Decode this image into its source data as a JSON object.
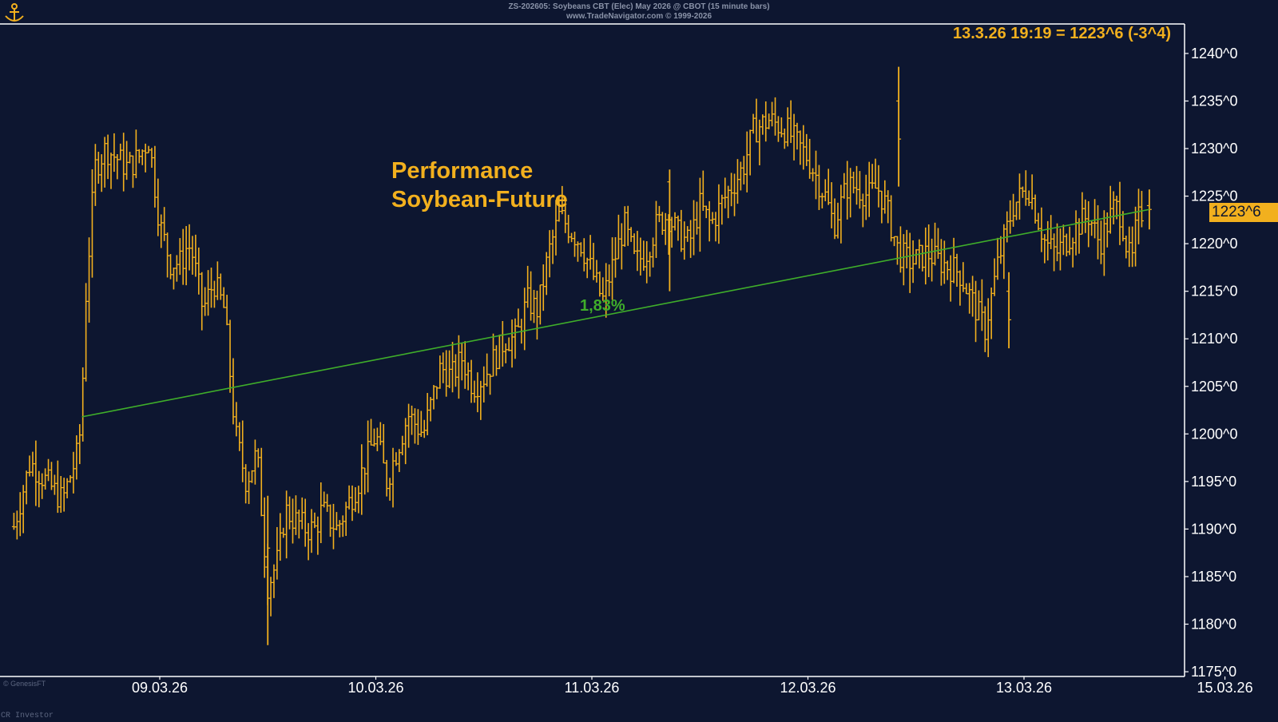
{
  "header": {
    "line1": "ZS-202605: Soybeans CBT (Elec) May 2026 @ CBOT (15 minute bars)",
    "line2": "www.TradeNavigator.com © 1999-2026"
  },
  "readout": "13.3.26 19:19 = 1223^6 (-3^4)",
  "annotation": {
    "title_line1": "Performance",
    "title_line2": "Soybean-Future",
    "performance_label": "1,83%"
  },
  "last_price_label": "1223^6",
  "footer": {
    "copyright": "© GenesisFT",
    "watermark": "CR Investor"
  },
  "colors": {
    "background": "#0d1630",
    "bars": "#f2b01e",
    "trendline": "#3fae2a",
    "axis": "#ffffff",
    "text": "#ffffff"
  },
  "chart_data": {
    "type": "ohlc-bar",
    "title": "ZS-202605: Soybeans CBT (Elec) May 2026 @ CBOT (15 minute bars)",
    "interval": "15 minute bars",
    "x_ticks": [
      "09.03.26",
      "10.03.26",
      "11.03.26",
      "12.03.26",
      "13.03.26",
      "15.03.26"
    ],
    "y_ticks": [
      "1240^0",
      "1235^0",
      "1230^0",
      "1225^0",
      "1220^0",
      "1215^0",
      "1210^0",
      "1205^0",
      "1200^0",
      "1195^0",
      "1190^0",
      "1185^0",
      "1180^0",
      "1175^0"
    ],
    "y_tick_values": [
      1240,
      1235,
      1230,
      1225,
      1220,
      1215,
      1210,
      1205,
      1200,
      1195,
      1190,
      1185,
      1180,
      1175
    ],
    "ylim": [
      1174.5,
      1243.1
    ],
    "xlim_days": [
      -0.68,
      4.65
    ],
    "x_tick_days": [
      0,
      1,
      2,
      3,
      4,
      4.93
    ],
    "price_path_days": [
      -0.74,
      -0.7,
      -0.6,
      -0.45,
      -0.38,
      -0.36,
      -0.35,
      -0.3,
      -0.25,
      -0.15,
      -0.1,
      -0.05,
      0.0,
      0.05,
      0.1,
      0.13,
      0.15,
      0.2,
      0.25,
      0.3,
      0.35,
      0.4,
      0.45,
      0.5,
      0.55,
      0.58,
      0.62,
      0.68,
      0.72,
      0.75,
      0.82,
      0.88,
      0.92,
      1.0,
      1.05,
      1.15,
      1.22,
      1.3,
      1.35,
      1.4,
      1.45,
      1.5,
      1.55,
      1.6,
      1.65,
      1.7,
      1.75,
      1.8,
      1.85,
      1.95,
      2.05,
      2.15,
      2.2,
      2.25,
      2.3,
      2.35,
      2.4,
      2.45,
      2.5,
      2.55,
      2.62,
      2.7,
      2.75,
      2.82,
      2.9,
      3.0,
      3.08,
      3.12,
      3.18,
      3.22,
      3.28,
      3.32,
      3.36,
      3.42,
      3.48,
      3.55,
      3.62,
      3.7,
      3.78,
      3.82,
      3.88,
      3.95,
      4.02,
      4.1,
      4.15,
      4.25,
      4.3,
      4.35,
      4.42,
      4.45,
      4.48,
      4.5,
      4.52,
      4.55
    ],
    "price_path_values": [
      1190,
      1188,
      1197,
      1193,
      1198,
      1202,
      1212,
      1228,
      1230,
      1228,
      1229,
      1231,
      1222,
      1218,
      1218,
      1220,
      1219,
      1213,
      1216,
      1213,
      1200,
      1195,
      1198,
      1184,
      1187,
      1192,
      1191,
      1190,
      1190,
      1192,
      1190,
      1193,
      1195,
      1200,
      1195,
      1202,
      1200,
      1207,
      1206,
      1208,
      1205,
      1206,
      1208,
      1210,
      1210,
      1214,
      1213,
      1219,
      1223,
      1220,
      1214,
      1222,
      1218,
      1219,
      1222,
      1223,
      1221,
      1220,
      1224,
      1222,
      1225,
      1228,
      1232,
      1233,
      1232,
      1229,
      1225,
      1222,
      1226,
      1226,
      1225,
      1226,
      1224,
      1219,
      1218,
      1219,
      1218,
      1217,
      1213,
      1211,
      1218,
      1224,
      1226,
      1220,
      1219,
      1222,
      1223,
      1220,
      1224,
      1223,
      1219,
      1218,
      1222,
      1223.6
    ],
    "ohlc_bars": [
      {
        "day": 0.5,
        "open": 1186.0,
        "high": 1193.5,
        "low": 1177.8,
        "close": 1188.0
      },
      {
        "day": 2.36,
        "open": 1226.5,
        "high": 1227.8,
        "low": 1215.0,
        "close": 1222.5
      },
      {
        "day": 3.42,
        "open": 1235.0,
        "high": 1238.6,
        "low": 1226.0,
        "close": 1231.0
      },
      {
        "day": 3.93,
        "open": 1215.0,
        "high": 1217.0,
        "low": 1209.0,
        "close": 1212.0
      },
      {
        "day": 4.58,
        "open": 1224.0,
        "high": 1225.7,
        "low": 1221.5,
        "close": 1223.6
      }
    ],
    "trendline": {
      "start_day": -0.36,
      "start_value": 1201.8,
      "end_day": 4.58,
      "end_value": 1223.6,
      "label": "1,83%"
    },
    "last_price": 1223.6,
    "grid": false
  }
}
